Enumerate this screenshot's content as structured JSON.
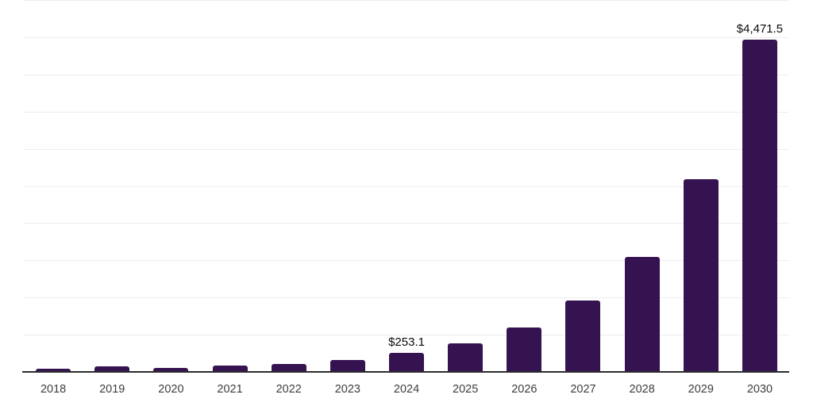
{
  "chart_data": {
    "type": "bar",
    "title": "",
    "xlabel": "",
    "ylabel": "",
    "categories": [
      "2018",
      "2019",
      "2020",
      "2021",
      "2022",
      "2023",
      "2024",
      "2025",
      "2026",
      "2027",
      "2028",
      "2029",
      "2030"
    ],
    "values": [
      45,
      75,
      55,
      85,
      110,
      155,
      253.1,
      380,
      600,
      960,
      1550,
      2590,
      4471.5
    ],
    "value_labels": {
      "2024": "$253.1",
      "2030": "$4,471.5"
    },
    "ylim": [
      0,
      5000
    ],
    "gridline_step": 500,
    "grid": "horizontal-only",
    "legend": "none",
    "y_axis_tick_labels_visible": false,
    "colors": {
      "bar": "#351250",
      "gridline": "#ededed",
      "axis": "#2b2b2b",
      "tick_label": "#3d3d3d",
      "value_label": "#0a0a0a",
      "background": "#ffffff"
    }
  }
}
